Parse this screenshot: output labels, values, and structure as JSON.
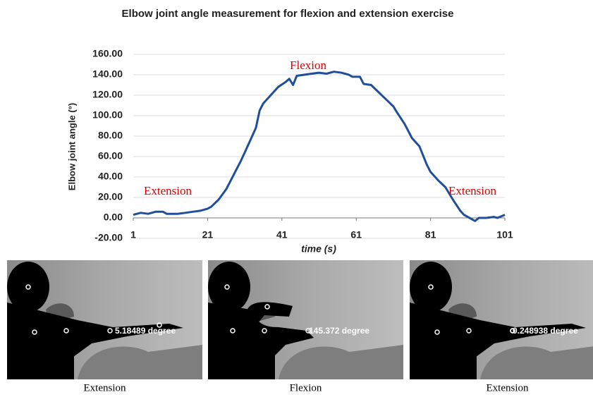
{
  "chart_data": {
    "type": "line",
    "title": "Elbow joint angle measurement for flexion and extension exercise",
    "x_label": "time (s)",
    "y_label": "Elbow joint angle (°)",
    "annotations": [
      "Extension",
      "Flexion",
      "Extension"
    ],
    "x": [
      1,
      3,
      5,
      7,
      9,
      10,
      13,
      15,
      17,
      19,
      21,
      22,
      24,
      26,
      28,
      30,
      32,
      34,
      35,
      36,
      38,
      40,
      42,
      43,
      44,
      45,
      47,
      49,
      51,
      53,
      55,
      57,
      59,
      60,
      62,
      63,
      65,
      67,
      69,
      71,
      72,
      74,
      76,
      78,
      80,
      81,
      83,
      85,
      87,
      89,
      90,
      91,
      93,
      94,
      96,
      98,
      99,
      101
    ],
    "series": [
      {
        "color": "#1f4e9c",
        "values": [
          3,
          5,
          4,
          6,
          6,
          4,
          4,
          5,
          6,
          7,
          9,
          11,
          18,
          28,
          42,
          56,
          72,
          88,
          105,
          112,
          120,
          128,
          133,
          136,
          130,
          139,
          140,
          141,
          142,
          141,
          143,
          142,
          140,
          138,
          138,
          131,
          130,
          123,
          116,
          109,
          103,
          92,
          78,
          70,
          52,
          45,
          37,
          30,
          18,
          7,
          3,
          1,
          -3,
          0,
          0,
          1,
          0,
          3
        ]
      }
    ],
    "xlim": [
      1,
      101
    ],
    "xticks": [
      1,
      21,
      41,
      61,
      81,
      101
    ],
    "ylim": [
      -20,
      160
    ],
    "yticks": [
      {
        "value": -20,
        "label": "-20.00"
      },
      {
        "value": 0,
        "label": "0.00"
      },
      {
        "value": 20,
        "label": "20.00"
      },
      {
        "value": 40,
        "label": "40.00"
      },
      {
        "value": 60,
        "label": "60.00"
      },
      {
        "value": 80,
        "label": "80.00"
      },
      {
        "value": 100,
        "label": "100.00"
      },
      {
        "value": 120,
        "label": "120.00"
      },
      {
        "value": 140,
        "label": "140.00"
      },
      {
        "value": 160,
        "label": "160.00"
      }
    ],
    "grid": true
  },
  "panels": [
    {
      "overlay": "5.18489 degree",
      "caption": "Extension"
    },
    {
      "overlay": "145.372 degree",
      "caption": "Flexion"
    },
    {
      "overlay": "0.248938 degree",
      "caption": "Extension"
    }
  ]
}
